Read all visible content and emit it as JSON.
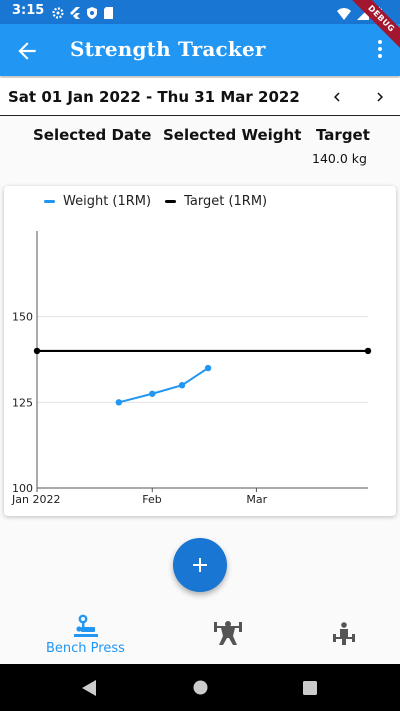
{
  "status_bar": {
    "time": "3:15"
  },
  "app_bar": {
    "title": "Strength Tracker",
    "debug_banner": "DEBUG"
  },
  "date_range": {
    "label": "Sat 01 Jan 2022 - Thu 31 Mar 2022"
  },
  "info": {
    "selected_date_header": "Selected Date",
    "selected_weight_header": "Selected Weight",
    "target_header": "Target",
    "target_value": "140.0 kg"
  },
  "chart_data": {
    "type": "line",
    "x_ticks": [
      "Jan 2022",
      "Feb",
      "Mar"
    ],
    "y_ticks": [
      "100",
      "125",
      "150"
    ],
    "ylim": [
      100,
      175
    ],
    "xlim": [
      "2022-01-01",
      "2022-03-31"
    ],
    "grid": true,
    "legend_position": "top",
    "series": [
      {
        "name": "Weight (1RM)",
        "color": "#2196f3",
        "points": [
          {
            "x": "2022-01-23",
            "y": 125
          },
          {
            "x": "2022-02-01",
            "y": 127.5
          },
          {
            "x": "2022-02-09",
            "y": 130
          },
          {
            "x": "2022-02-16",
            "y": 135
          }
        ]
      },
      {
        "name": "Target (1RM)",
        "color": "#000000",
        "points": [
          {
            "x": "2022-01-01",
            "y": 140
          },
          {
            "x": "2022-03-31",
            "y": 140
          }
        ]
      }
    ]
  },
  "fab": {
    "icon": "plus-icon"
  },
  "bottom_nav": {
    "tabs": [
      {
        "label": "Bench Press",
        "icon": "bench-press-icon",
        "active": true
      },
      {
        "label": "",
        "icon": "squat-icon",
        "active": false
      },
      {
        "label": "",
        "icon": "deadlift-icon",
        "active": false
      }
    ]
  },
  "colors": {
    "primary": "#2196f3",
    "primary_dark": "#1976d2",
    "debug": "#a3162f"
  }
}
